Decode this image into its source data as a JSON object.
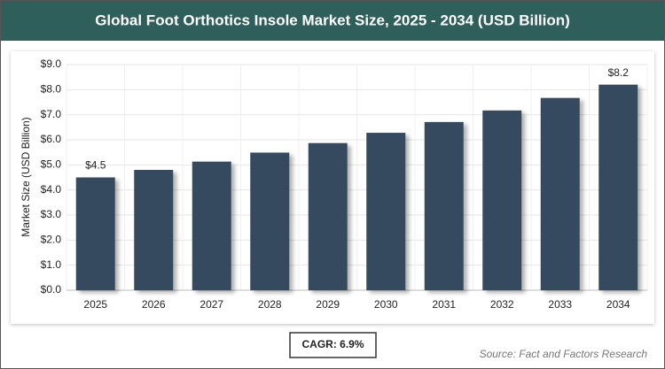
{
  "chart_data": {
    "type": "bar",
    "title": "Global Foot Orthotics Insole Market Size, 2025 - 2034 (USD Billion)",
    "y_label": "Market Size (USD Billion)",
    "categories": [
      "2025",
      "2026",
      "2027",
      "2028",
      "2029",
      "2030",
      "2031",
      "2032",
      "2033",
      "2034"
    ],
    "values": [
      4.5,
      4.8,
      5.13,
      5.49,
      5.87,
      6.28,
      6.71,
      7.17,
      7.67,
      8.2
    ],
    "value_labels": [
      "$4.5",
      null,
      null,
      null,
      null,
      null,
      null,
      null,
      null,
      "$8.2"
    ],
    "color": "#364a5f",
    "ylim": [
      0,
      9
    ],
    "yticks": [
      {
        "value": 0,
        "label": "$0.0"
      },
      {
        "value": 1,
        "label": "$1.0"
      },
      {
        "value": 2,
        "label": "$2.0"
      },
      {
        "value": 3,
        "label": "$3.0"
      },
      {
        "value": 4,
        "label": "$4.0"
      },
      {
        "value": 5,
        "label": "$5.0"
      },
      {
        "value": 6,
        "label": "$6.0"
      },
      {
        "value": 7,
        "label": "$7.0"
      },
      {
        "value": 8,
        "label": "$8.0"
      },
      {
        "value": 9,
        "label": "$9.0"
      }
    ],
    "grid": true,
    "cagr": "CAGR: 6.9%",
    "source": "Source: Fact and Factors Research"
  }
}
